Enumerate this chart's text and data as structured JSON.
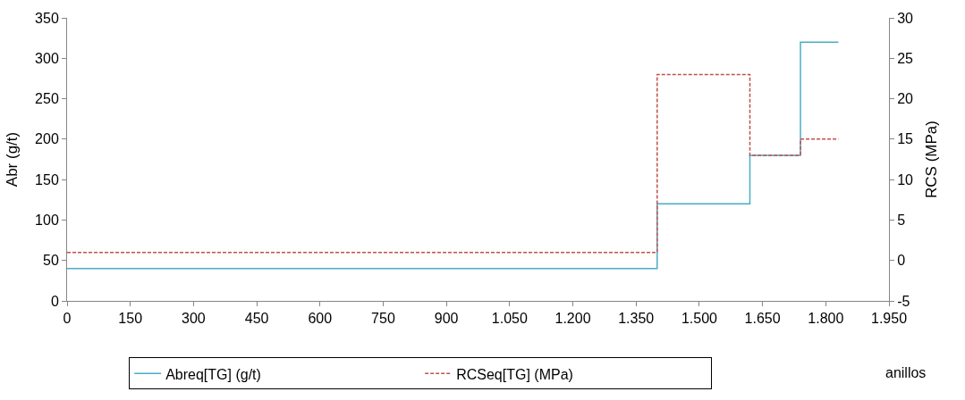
{
  "chart_data": {
    "type": "step",
    "xlabel": "anillos",
    "ylabel": "Abr (g/t)",
    "y2label": "RCS (MPa)",
    "x": [
      0,
      1400,
      1620,
      1740,
      1830
    ],
    "series": [
      {
        "name": "Abreq[TG] (g/t)",
        "color": "#4bacc6",
        "values": [
          40,
          120,
          180,
          320,
          320
        ],
        "line_style": "solid"
      },
      {
        "name": "RCSeq[TG] (MPa)",
        "color": "#c0504d",
        "values": [
          1,
          23,
          13,
          15,
          15
        ],
        "axis": "y2",
        "line_style": "dashed"
      }
    ],
    "xlim": [
      0,
      1950
    ],
    "xticks": [
      0,
      150,
      300,
      450,
      600,
      750,
      900,
      {
        "value": 1050,
        "label": "1.050"
      },
      {
        "value": 1200,
        "label": "1.200"
      },
      {
        "value": 1350,
        "label": "1.350"
      },
      {
        "value": 1500,
        "label": "1.500"
      },
      {
        "value": 1650,
        "label": "1.650"
      },
      {
        "value": 1800,
        "label": "1.800"
      },
      {
        "value": 1950,
        "label": "1.950"
      }
    ],
    "ylim": [
      0,
      350
    ],
    "yticks": [
      0,
      50,
      100,
      150,
      200,
      250,
      300,
      350
    ],
    "y2lim": [
      -5,
      30
    ],
    "y2ticks": [
      -5,
      0,
      5,
      10,
      15,
      20,
      25,
      30
    ],
    "legend": "bottom",
    "marker": "none"
  }
}
